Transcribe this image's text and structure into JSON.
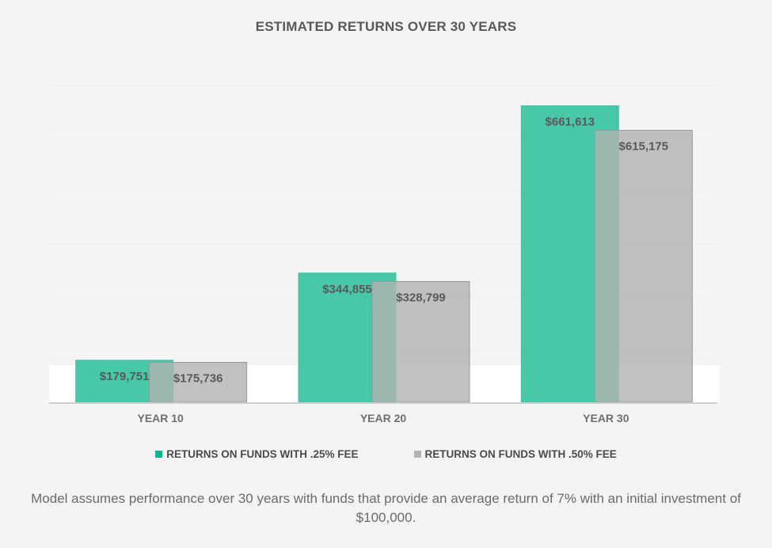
{
  "chart_data": {
    "type": "bar",
    "title": "ESTIMATED RETURNS OVER 30 YEARS",
    "categories": [
      "YEAR 10",
      "YEAR 20",
      "YEAR 30"
    ],
    "series": [
      {
        "name": "RETURNS ON FUNDS WITH .25% FEE",
        "values": [
          179751,
          344855,
          661613
        ],
        "labels": [
          "$179,751",
          "$344,855",
          "$661,613"
        ],
        "color": "#3ec4a4"
      },
      {
        "name": "RETURNS ON FUNDS WITH .50% FEE",
        "values": [
          175736,
          328799,
          615175
        ],
        "labels": [
          "$175,736",
          "$328,799",
          "$615,175"
        ],
        "color": "#bbbbbb"
      }
    ],
    "ylim": [
      100000,
      700000
    ],
    "grid": true,
    "legend": "bottom",
    "overlap": true
  },
  "footnote": "Model assumes performance over 30 years with funds that provide an average return of 7% with an initial investment of $100,000."
}
